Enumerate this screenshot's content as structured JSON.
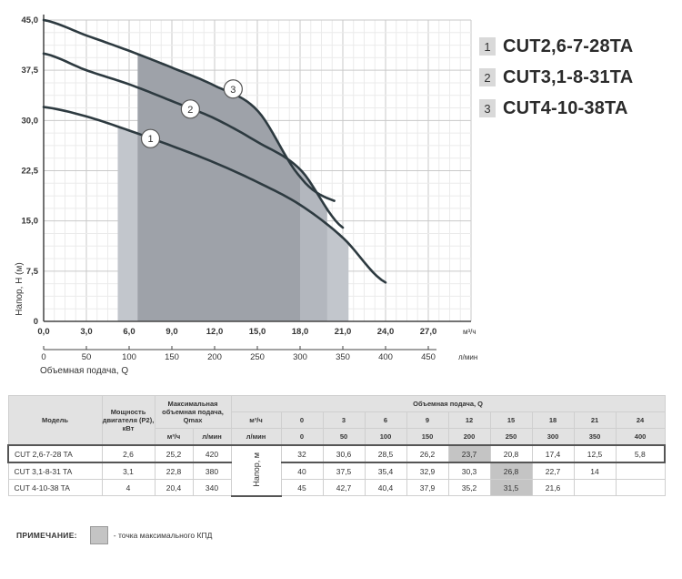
{
  "chart_data": {
    "type": "line",
    "xlabel": "Объемная подача, Q",
    "ylabel": "Напор, H (м)",
    "x_unit_primary": "м³/ч",
    "x_unit_secondary": "л/мин",
    "xlim": [
      0,
      30
    ],
    "ylim": [
      0,
      45
    ],
    "x_ticks": [
      "0,0",
      "3,0",
      "6,0",
      "9,0",
      "12,0",
      "15,0",
      "18,0",
      "21,0",
      "24,0",
      "27,0"
    ],
    "x_ticks_lpm": [
      "0",
      "50",
      "100",
      "150",
      "200",
      "250",
      "300",
      "350",
      "400",
      "450"
    ],
    "y_ticks": [
      "0",
      "7,5",
      "15,0",
      "22,5",
      "30,0",
      "37,5",
      "45,0"
    ],
    "grid": true,
    "series": [
      {
        "name": "CUT2,6-7-28TA",
        "marker": "1",
        "color": "#2d3a40",
        "x": [
          0,
          3,
          6,
          9,
          12,
          15,
          18,
          21,
          24
        ],
        "y": [
          32,
          30.6,
          28.5,
          26.2,
          23.7,
          20.8,
          17.4,
          12.5,
          5.8
        ],
        "label_at": [
          7.5,
          27.3
        ]
      },
      {
        "name": "CUT3,1-8-31TA",
        "marker": "2",
        "color": "#2d3a40",
        "x": [
          0,
          3,
          6,
          9,
          12,
          15,
          18,
          21
        ],
        "y": [
          40,
          37.5,
          35.4,
          32.9,
          30.3,
          26.8,
          22.7,
          14
        ],
        "label_at": [
          10.3,
          31.7
        ]
      },
      {
        "name": "CUT4-10-38TA",
        "marker": "3",
        "color": "#2d3a40",
        "x": [
          0,
          3,
          6,
          9,
          12,
          15,
          18,
          20.4
        ],
        "y": [
          45,
          42.7,
          40.4,
          37.9,
          35.2,
          31.5,
          21.6,
          18
        ],
        "label_at": [
          13.3,
          34.7
        ]
      }
    ],
    "efficiency_regions": [
      {
        "series": "CUT2,6-7-28TA",
        "x_from": 5.2,
        "x_to": 21.4,
        "color": "#c2c6cc"
      },
      {
        "series": "CUT3,1-8-31TA",
        "x_from": 6.6,
        "x_to": 19.9,
        "color": "#b3b7be"
      },
      {
        "series": "CUT4-10-38TA",
        "x_from": 6.6,
        "x_to": 18.0,
        "color": "#9ea2a9"
      }
    ]
  },
  "legend": [
    {
      "num": "1",
      "name": "CUT2,6-7-28TA"
    },
    {
      "num": "2",
      "name": "CUT3,1-8-31TA"
    },
    {
      "num": "3",
      "name": "CUT4-10-38TA"
    }
  ],
  "table": {
    "model_header": "Модель",
    "power_header": "Мощность двигателя (P2), кВт",
    "qmax_header": "Максимальная объемная подача, Qmax",
    "qmax_unit1": "м³/ч",
    "qmax_unit2": "л/мин",
    "flow_header": "Объемная подача, Q",
    "flow_unit1": "м³/ч",
    "flow_unit2": "л/мин",
    "head_label": "Напор, м",
    "flow_m3h": [
      "0",
      "3",
      "6",
      "9",
      "12",
      "15",
      "18",
      "21",
      "24"
    ],
    "flow_lpm": [
      "0",
      "50",
      "100",
      "150",
      "200",
      "250",
      "300",
      "350",
      "400"
    ],
    "rows": [
      {
        "model": "CUT 2,6-7-28 TA",
        "power": "2,6",
        "qmax_m3h": "25,2",
        "qmax_lpm": "420",
        "heads": [
          "32",
          "30,6",
          "28,5",
          "26,2",
          "23,7",
          "20,8",
          "17,4",
          "12,5",
          "5,8"
        ],
        "highlight": 4
      },
      {
        "model": "CUT 3,1-8-31 TA",
        "power": "3,1",
        "qmax_m3h": "22,8",
        "qmax_lpm": "380",
        "heads": [
          "40",
          "37,5",
          "35,4",
          "32,9",
          "30,3",
          "26,8",
          "22,7",
          "14",
          ""
        ],
        "highlight": 5
      },
      {
        "model": "CUT 4-10-38 TA",
        "power": "4",
        "qmax_m3h": "20,4",
        "qmax_lpm": "340",
        "heads": [
          "45",
          "42,7",
          "40,4",
          "37,9",
          "35,2",
          "31,5",
          "21,6",
          "",
          ""
        ],
        "highlight": 5
      }
    ]
  },
  "note": {
    "label": "ПРИМЕЧАНИЕ:",
    "text": "- точка максимального КПД"
  }
}
